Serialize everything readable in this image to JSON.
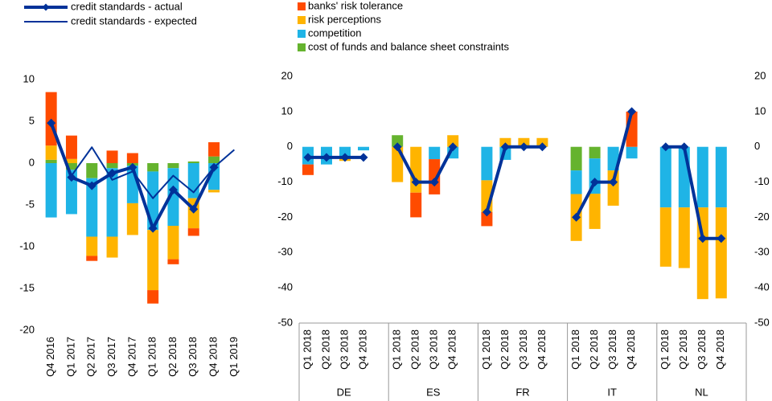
{
  "chart_data": [
    {
      "type": "bar",
      "categories": [
        "Q4 2016",
        "Q1 2017",
        "Q2 2017",
        "Q3 2017",
        "Q4 2017",
        "Q1 2018",
        "Q2 2018",
        "Q3 2018",
        "Q4 2018",
        "Q1 2019"
      ],
      "series": [
        {
          "name": "banks' risk tolerance",
          "color": "#ff4b00",
          "style": "bar",
          "values": [
            6.4,
            2.8,
            -0.6,
            1.5,
            1.2,
            -1.6,
            -0.6,
            -0.9,
            1.7,
            null
          ]
        },
        {
          "name": "risk perceptions",
          "color": "#ffb400",
          "style": "bar",
          "values": [
            1.7,
            0.5,
            -2.3,
            -2.5,
            -3.8,
            -7.2,
            -4,
            -3.6,
            -0.3,
            null
          ]
        },
        {
          "name": "competition",
          "color": "#1fb4e6",
          "style": "bar",
          "values": [
            -6.5,
            -5.3,
            -7,
            -8.2,
            -4.5,
            -7,
            -6.9,
            -4.2,
            -3.2,
            null
          ]
        },
        {
          "name": "cost of funds and balance sheet constraints",
          "color": "#65b32e",
          "style": "bar",
          "values": [
            0.4,
            -0.8,
            -1.8,
            -0.6,
            -0.3,
            -1,
            -0.6,
            0.2,
            0.8,
            null
          ]
        },
        {
          "name": "credit standards - actual",
          "color": "#003299",
          "style": "line",
          "values": [
            4.8,
            -1.7,
            -2.7,
            -1.2,
            -0.5,
            -7.8,
            -3.2,
            -5.5,
            -0.5,
            null
          ]
        },
        {
          "name": "credit standards - expected",
          "color": "#003299",
          "style": "thin-line",
          "values": [
            4.5,
            -1.5,
            1.9,
            -2,
            -1,
            -4.2,
            -1.5,
            -3.5,
            -0.5,
            1.6
          ]
        }
      ],
      "ylim": [
        -20,
        10
      ],
      "yticks": [
        -20,
        -15,
        -10,
        -5,
        0,
        5,
        10
      ]
    },
    {
      "type": "bar",
      "groups": [
        "DE",
        "ES",
        "FR",
        "IT",
        "NL"
      ],
      "categories": [
        "Q1 2018",
        "Q2 2018",
        "Q3 2018",
        "Q4 2018",
        "Q1 2018",
        "Q2 2018",
        "Q3 2018",
        "Q4 2018",
        "Q1 2018",
        "Q2 2018",
        "Q3 2018",
        "Q4 2018",
        "Q1 2018",
        "Q2 2018",
        "Q3 2018",
        "Q4 2018",
        "Q1 2018",
        "Q2 2018",
        "Q3 2018",
        "Q4 2018"
      ],
      "series": [
        {
          "color": "#ff4b00",
          "style": "bar",
          "values": [
            -3,
            0,
            0,
            0,
            0,
            -7,
            -10,
            0,
            -4,
            0,
            0,
            0,
            0,
            0,
            0,
            10,
            0,
            0,
            0,
            0
          ]
        },
        {
          "color": "#ffb400",
          "style": "bar",
          "values": [
            0,
            0,
            -1,
            0,
            -10,
            -13,
            0,
            3.3,
            -9,
            2.5,
            2.5,
            2.5,
            -13.3,
            -10,
            -10,
            0,
            -16.8,
            -17.2,
            -26,
            -25.8
          ]
        },
        {
          "color": "#1fb4e6",
          "style": "bar",
          "values": [
            -5,
            -5,
            -3,
            -1,
            0,
            0,
            -3.5,
            -3.3,
            -9.5,
            -3.7,
            0,
            0,
            -6.7,
            -10,
            -6.7,
            -3.3,
            -17.2,
            -17.2,
            -17.2,
            -17.2
          ]
        },
        {
          "color": "#65b32e",
          "style": "bar",
          "values": [
            0,
            0,
            0,
            0,
            3.3,
            0,
            0,
            0,
            0,
            0,
            0,
            0,
            -6.7,
            -3.3,
            0,
            0,
            0,
            0,
            0,
            0
          ]
        },
        {
          "color": "#003299",
          "style": "line",
          "values": [
            -3,
            -3,
            -3,
            -3,
            0,
            -10,
            -10,
            0,
            -18.5,
            0,
            0,
            0,
            -20,
            -10,
            -10,
            10,
            0,
            0,
            -26,
            -26
          ]
        }
      ],
      "ylim": [
        -50,
        20
      ],
      "yticks": [
        -50,
        -40,
        -30,
        -20,
        -10,
        0,
        10,
        20
      ],
      "y2lim": [
        -50,
        20
      ],
      "y2ticks": [
        -50,
        -40,
        -30,
        -20,
        -10,
        0,
        10,
        20
      ]
    }
  ]
}
